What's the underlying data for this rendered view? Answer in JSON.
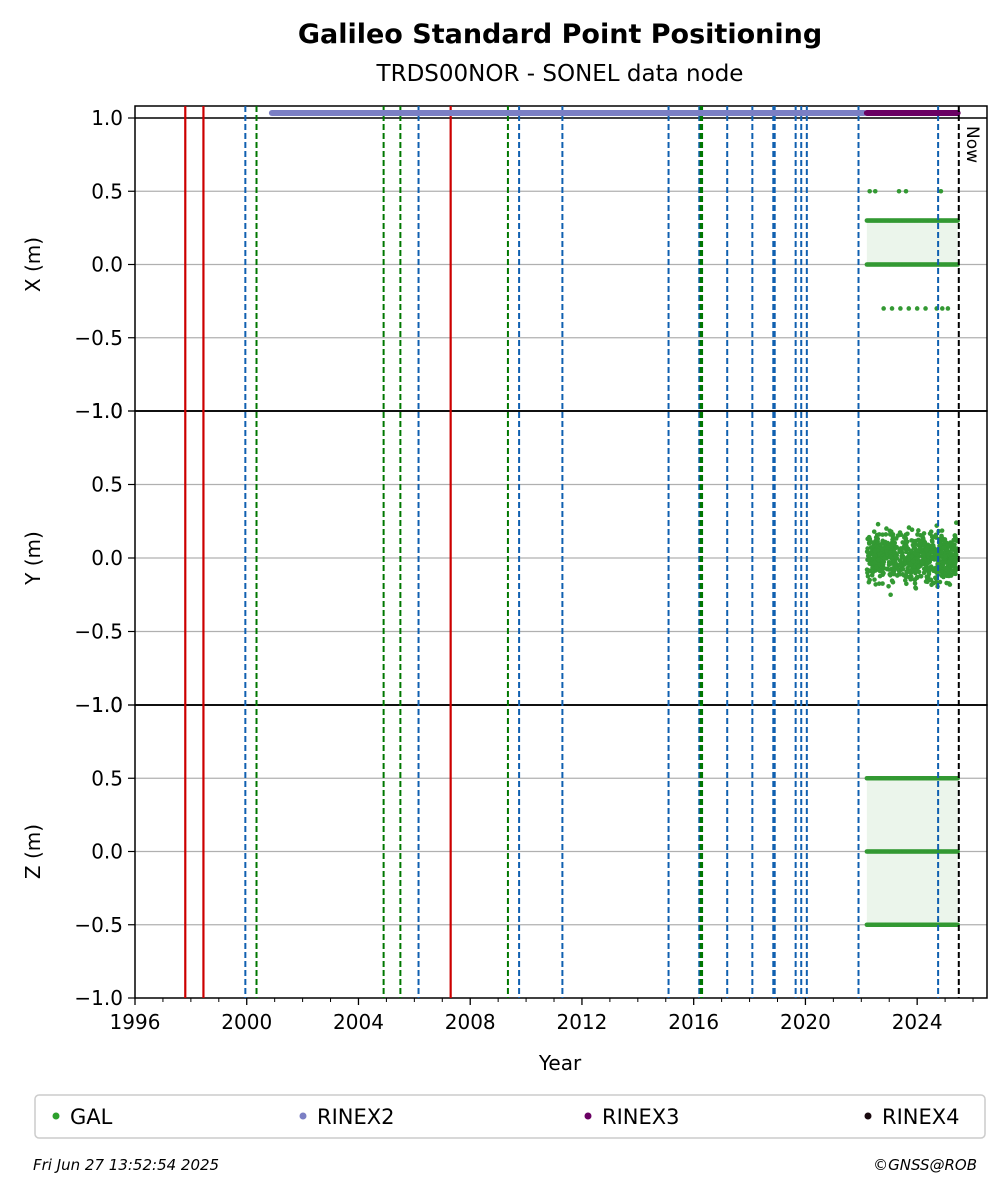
{
  "chart_data": {
    "type": "scatter",
    "title": "Galileo Standard Point Positioning",
    "subtitle": "TRDS00NOR - SONEL data node",
    "xlabel": "Year",
    "xlim": [
      1996,
      2026.5
    ],
    "x_ticks": [
      1996,
      2000,
      2004,
      2008,
      2012,
      2016,
      2020,
      2024
    ],
    "panels": [
      {
        "id": "x",
        "ylabel": "X (m)",
        "ylim": [
          -1.0,
          1.0
        ],
        "y_ticks": [
          -1.0,
          -0.5,
          0.0,
          0.5,
          1.0
        ],
        "levels": [
          0.3,
          0.0
        ],
        "outliers": [
          0.5,
          -0.3
        ]
      },
      {
        "id": "y",
        "ylabel": "Y (m)",
        "ylim": [
          -1.0,
          1.0
        ],
        "y_ticks": [
          -1.0,
          -0.5,
          0.0,
          0.5,
          1.0
        ],
        "levels": [
          0.0
        ],
        "outliers": [
          0.22,
          -0.2
        ]
      },
      {
        "id": "z",
        "ylabel": "Z (m)",
        "ylim": [
          -1.0,
          1.0
        ],
        "y_ticks": [
          -1.0,
          -0.5,
          0.0,
          0.5,
          1.0
        ],
        "levels": [
          0.5,
          0.0,
          -0.5
        ],
        "outliers": []
      }
    ],
    "gal_range": [
      2022.2,
      2025.45
    ],
    "rinex2_range": [
      2000.9,
      2022.1
    ],
    "rinex3_range": [
      2022.2,
      2025.45
    ],
    "now_label": "Now",
    "now_x": 2025.49,
    "events": {
      "red_solid": [
        1997.8,
        1998.45,
        2007.3
      ],
      "blue_dashed": [
        1999.95,
        2006.15,
        2009.75,
        2011.3,
        2015.1,
        2016.2,
        2017.2,
        2018.1,
        2018.85,
        2018.9,
        2019.65,
        2019.85,
        2020.05,
        2021.9,
        2024.75
      ],
      "green_dashed": [
        2000.35,
        2004.9,
        2005.5,
        2009.35,
        2016.25,
        2016.3
      ]
    },
    "legend": [
      {
        "label": "GAL",
        "color": "#2ca02c"
      },
      {
        "label": "RINEX2",
        "color": "#7b7fc4"
      },
      {
        "label": "RINEX3",
        "color": "#6a0063"
      },
      {
        "label": "RINEX4",
        "color": "#1a0a10"
      }
    ],
    "colors": {
      "gal": "#339933",
      "rinex2": "#7b7fc4",
      "rinex3": "#6a0063",
      "red": "#cc0000",
      "blue": "#1060b0",
      "green": "#007700",
      "grid": "#b0b0b0"
    }
  },
  "footer": {
    "timestamp": "Fri Jun 27 13:52:54 2025",
    "copyright": "©GNSS@ROB"
  }
}
